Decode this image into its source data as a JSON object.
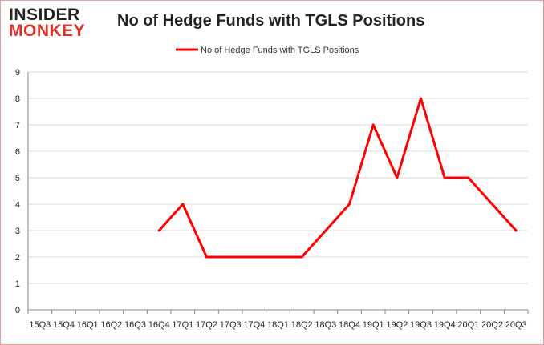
{
  "logo": {
    "line1": "INSIDER",
    "line2": "MONKEY"
  },
  "chart_data": {
    "type": "line",
    "title": "No of Hedge Funds with TGLS Positions",
    "categories": [
      "15Q3",
      "15Q4",
      "16Q1",
      "16Q2",
      "16Q3",
      "16Q4",
      "17Q1",
      "17Q2",
      "17Q3",
      "17Q4",
      "18Q1",
      "18Q2",
      "18Q3",
      "18Q4",
      "19Q1",
      "19Q2",
      "19Q3",
      "19Q4",
      "20Q1",
      "20Q2",
      "20Q3"
    ],
    "series": [
      {
        "name": "No of Hedge Funds with TGLS Positions",
        "color": "#ff0000",
        "values": [
          null,
          null,
          null,
          null,
          null,
          3,
          4,
          2,
          2,
          2,
          2,
          2,
          3,
          4,
          7,
          5,
          8,
          5,
          5,
          4,
          3
        ]
      }
    ],
    "ylim": [
      0,
      9
    ],
    "yticks": [
      0,
      1,
      2,
      3,
      4,
      5,
      6,
      7,
      8,
      9
    ],
    "grid": true,
    "legend": "top-center"
  }
}
